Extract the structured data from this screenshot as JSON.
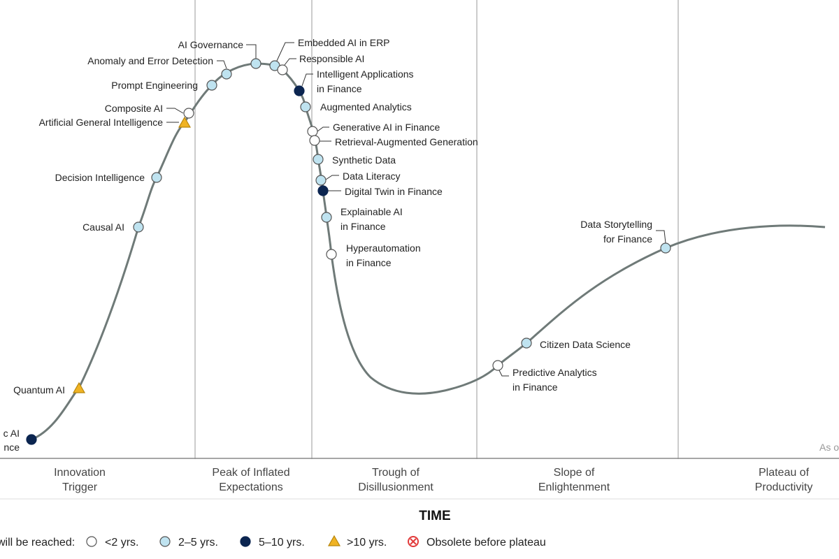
{
  "phases": [
    {
      "line1": "Innovation",
      "line2": "Trigger"
    },
    {
      "line1": "Peak of Inflated",
      "line2": "Expectations"
    },
    {
      "line1": "Trough of",
      "line2": "Disillusionment"
    },
    {
      "line1": "Slope of",
      "line2": "Enlightenment"
    },
    {
      "line1": "Plateau of",
      "line2": "Productivity"
    }
  ],
  "x_axis_title": "TIME",
  "as_of_text": "As o",
  "legend": {
    "prefix": "will be reached:",
    "items": [
      {
        "marker": "lt2",
        "label": "<2 yrs."
      },
      {
        "marker": "2to5",
        "label": "2–5 yrs."
      },
      {
        "marker": "5to10",
        "label": "5–10 yrs."
      },
      {
        "marker": "gt10",
        "label": ">10 yrs."
      },
      {
        "marker": "obsolete",
        "label": "Obsolete before plateau"
      }
    ]
  },
  "marker_colors": {
    "lt2": "#ffffff",
    "2to5": "#bfe3f0",
    "5to10": "#0b2550",
    "gt10": "#f0b323",
    "obsolete": "#e23b3b"
  },
  "curve_color": "#6f7a78",
  "technologies": [
    {
      "name": "c AI",
      "name2": "nce",
      "marker": "5to10"
    },
    {
      "name": "Quantum AI",
      "marker": "gt10"
    },
    {
      "name": "Causal AI",
      "marker": "2to5"
    },
    {
      "name": "Decision Intelligence",
      "marker": "2to5"
    },
    {
      "name": "Artificial General Intelligence",
      "marker": "gt10"
    },
    {
      "name": "Composite AI",
      "marker": "lt2"
    },
    {
      "name": "Prompt Engineering",
      "marker": "2to5"
    },
    {
      "name": "Anomaly and Error Detection",
      "marker": "2to5"
    },
    {
      "name": "AI Governance",
      "marker": "2to5"
    },
    {
      "name": "Embedded AI in ERP",
      "marker": "2to5"
    },
    {
      "name": "Responsible AI",
      "marker": "lt2"
    },
    {
      "name": "Intelligent Applications",
      "name2": "in Finance",
      "marker": "5to10"
    },
    {
      "name": "Augmented Analytics",
      "marker": "2to5"
    },
    {
      "name": "Generative AI in Finance",
      "marker": "lt2"
    },
    {
      "name": "Retrieval-Augmented Generation",
      "marker": "lt2"
    },
    {
      "name": "Synthetic Data",
      "marker": "2to5"
    },
    {
      "name": "Data Literacy",
      "marker": "2to5"
    },
    {
      "name": "Digital Twin in Finance",
      "marker": "5to10"
    },
    {
      "name": "Explainable AI",
      "name2": "in Finance",
      "marker": "2to5"
    },
    {
      "name": "Hyperautomation",
      "name2": "in Finance",
      "marker": "lt2"
    },
    {
      "name": "Predictive Analytics",
      "name2": "in Finance",
      "marker": "lt2"
    },
    {
      "name": "Citizen Data Science",
      "marker": "2to5"
    },
    {
      "name": "Data Storytelling",
      "name2": "for Finance",
      "marker": "2to5"
    }
  ]
}
